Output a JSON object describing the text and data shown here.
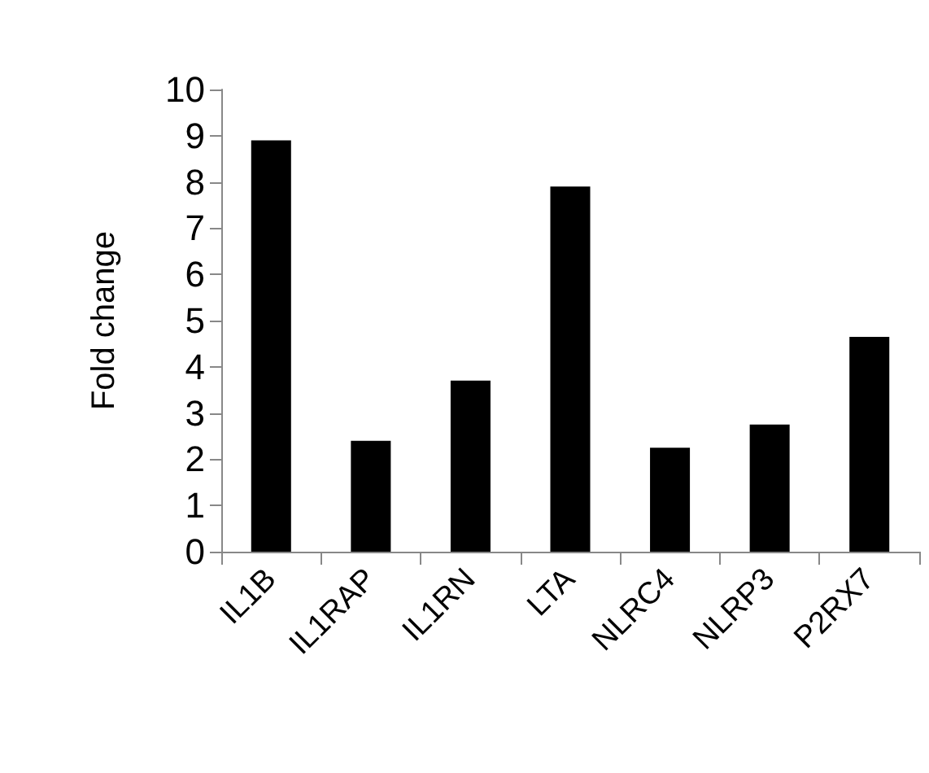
{
  "chart_data": {
    "type": "bar",
    "ylabel": "Fold change",
    "categories": [
      "IL1B",
      "IL1RAP",
      "IL1RN",
      "LTA",
      "NLRC4",
      "NLRP3",
      "P2RX7"
    ],
    "values": [
      8.9,
      2.4,
      3.7,
      7.9,
      2.25,
      2.75,
      4.65
    ],
    "color": "#000000",
    "ylim": [
      0,
      10
    ],
    "yticks": [
      0,
      1,
      2,
      3,
      4,
      5,
      6,
      7,
      8,
      9,
      10
    ],
    "grid": false
  }
}
